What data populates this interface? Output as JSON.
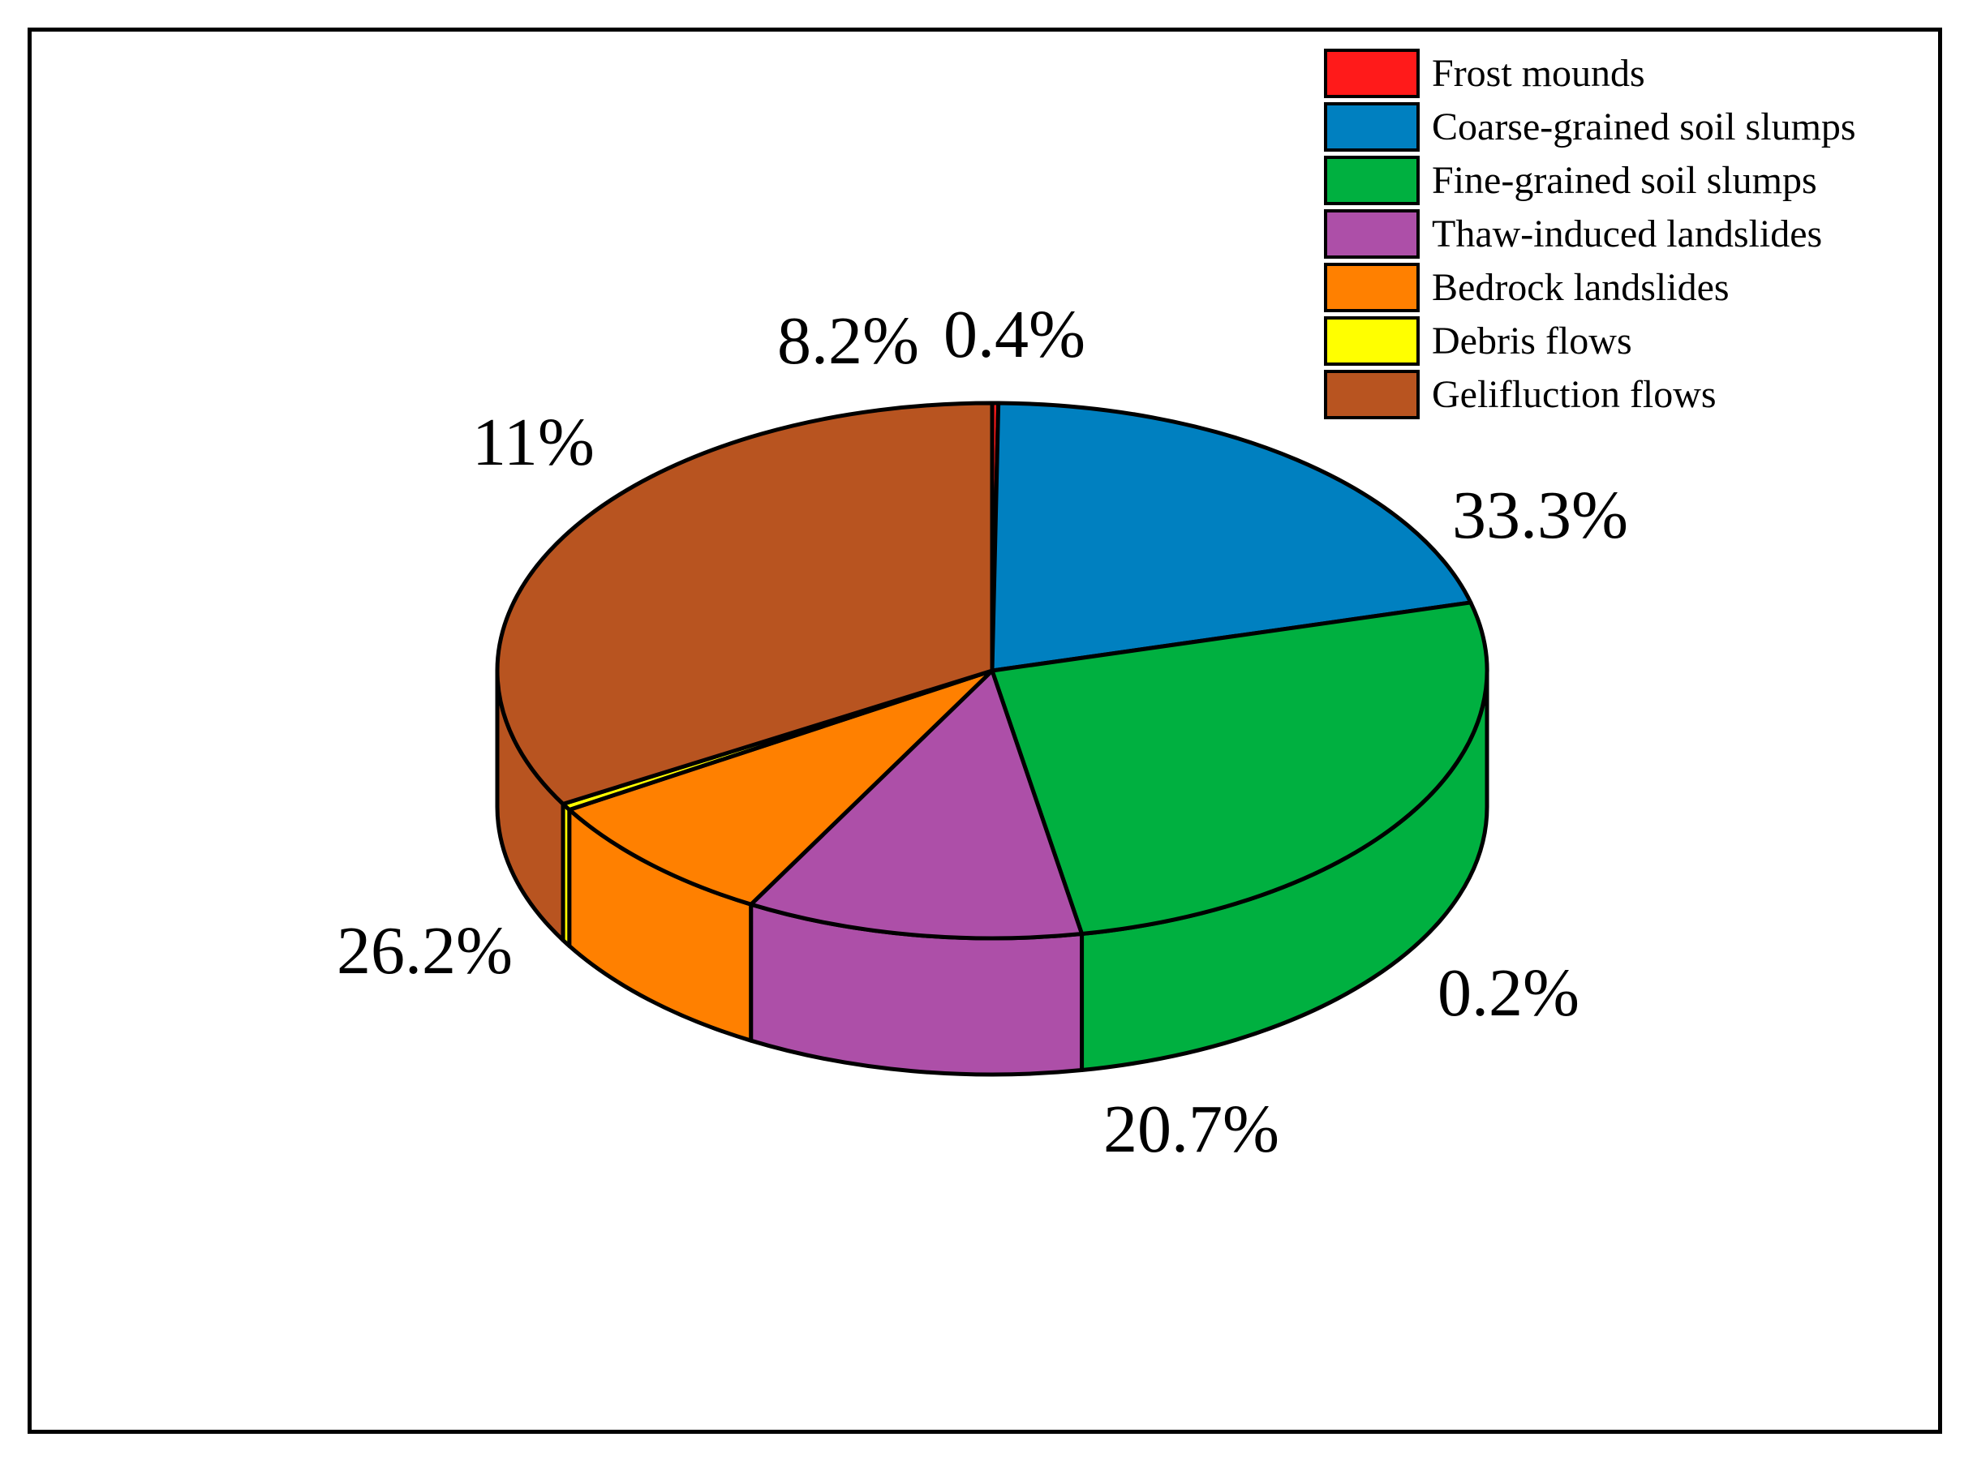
{
  "chart_data": {
    "type": "pie",
    "variant": "3d",
    "start_angle_deg": 90,
    "direction": "clockwise",
    "legend_position": "top-right",
    "slices": [
      {
        "name": "Frost mounds",
        "value": 0.2,
        "label": "0.2%",
        "color": "#ff1a1a"
      },
      {
        "name": "Coarse-grained soil slumps",
        "value": 20.7,
        "label": "20.7%",
        "color": "#0080c0"
      },
      {
        "name": "Fine-grained soil slumps",
        "value": 26.2,
        "label": "26.2%",
        "color": "#00b040"
      },
      {
        "name": "Thaw-induced landslides",
        "value": 11,
        "label": "11%",
        "color": "#ad4fa8"
      },
      {
        "name": "Bedrock landslides",
        "value": 8.2,
        "label": "8.2%",
        "color": "#ff8000"
      },
      {
        "name": "Debris flows",
        "value": 0.4,
        "label": "0.4%",
        "color": "#ffff00"
      },
      {
        "name": "Gelifluction flows",
        "value": 33.3,
        "label": "33.3%",
        "color": "#b85420"
      }
    ]
  }
}
